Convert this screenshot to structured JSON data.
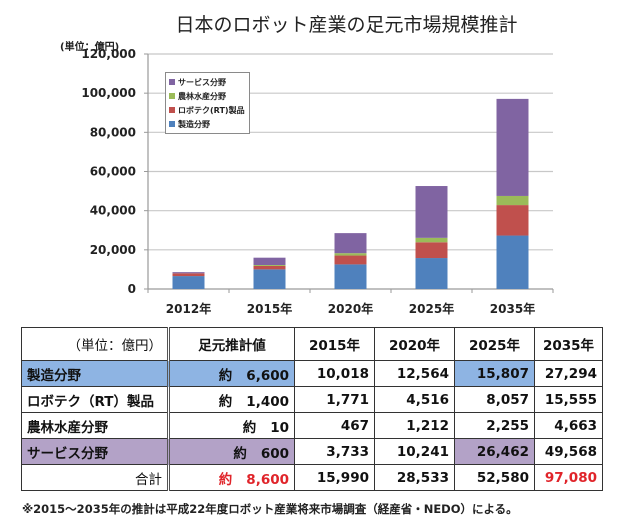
{
  "title": "日本のロボット産業の足元市場規模推計",
  "unit_label": "(単位：億円)",
  "chart_data": {
    "type": "bar",
    "stacked": true,
    "title": "日本のロボット産業の足元市場規模推計",
    "xlabel": "",
    "ylabel": "(単位：億円)",
    "ylim": [
      0,
      120000
    ],
    "yticks": [
      0,
      20000,
      40000,
      60000,
      80000,
      100000,
      120000
    ],
    "ytick_labels": [
      "0",
      "20,000",
      "40,000",
      "60,000",
      "80,000",
      "100,000",
      "120,000"
    ],
    "grid": true,
    "legend_position": "top-left",
    "categories": [
      "2012年",
      "2015年",
      "2020年",
      "2025年",
      "2035年"
    ],
    "series": [
      {
        "name": "製造分野",
        "color": "#4f81bd",
        "values": [
          6600,
          10018,
          12564,
          15807,
          27294
        ]
      },
      {
        "name": "ロボテク(RT)製品",
        "color": "#c0504d",
        "values": [
          1400,
          1771,
          4516,
          8057,
          15555
        ]
      },
      {
        "name": "農林水産分野",
        "color": "#9bbb59",
        "values": [
          10,
          467,
          1212,
          2255,
          4663
        ]
      },
      {
        "name": "サービス分野",
        "color": "#8064a2",
        "values": [
          600,
          3733,
          10241,
          26462,
          49568
        ]
      }
    ],
    "legend_order": [
      "サービス分野",
      "農林水産分野",
      "ロボテク(RT)製品",
      "製造分野"
    ]
  },
  "table": {
    "header": [
      "（単位：億円）",
      "足元推計値",
      "2015年",
      "2020年",
      "2025年",
      "2035年"
    ],
    "approx_prefix": "約",
    "rows": [
      {
        "label": "製造分野",
        "current": "6,600",
        "values": [
          "10,018",
          "12,564",
          "15,807",
          "27,294"
        ]
      },
      {
        "label": "ロボテク（RT）製品",
        "current": "1,400",
        "values": [
          "1,771",
          "4,516",
          "8,057",
          "15,555"
        ]
      },
      {
        "label": "農林水産分野",
        "current": "10",
        "values": [
          "467",
          "1,212",
          "2,255",
          "4,663"
        ]
      },
      {
        "label": "サービス分野",
        "current": "600",
        "values": [
          "3,733",
          "10,241",
          "26,462",
          "49,568"
        ]
      }
    ],
    "total": {
      "label": "合計",
      "current": "8,600",
      "values": [
        "15,990",
        "28,533",
        "52,580",
        "97,080"
      ]
    },
    "colors": {
      "highlight_blue": "#8eb4e3",
      "highlight_purple": "#b3a2c7",
      "total_red": "#e0242a"
    }
  },
  "footnote": "※2015～2035年の推計は平成22年度ロボット産業将来市場調査（経産省・NEDO）による。"
}
